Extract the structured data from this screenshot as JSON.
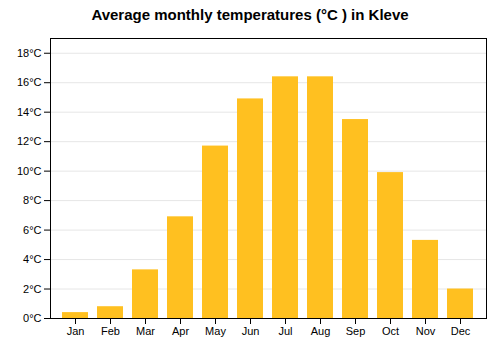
{
  "chart_data": {
    "type": "bar",
    "title": "Average monthly temperatures (°C ) in Kleve",
    "categories": [
      "Jan",
      "Feb",
      "Mar",
      "Apr",
      "May",
      "Jun",
      "Jul",
      "Aug",
      "Sep",
      "Oct",
      "Nov",
      "Dec"
    ],
    "values": [
      0.4,
      0.8,
      3.3,
      6.9,
      11.7,
      14.9,
      16.4,
      16.4,
      13.5,
      9.9,
      5.3,
      2.0
    ],
    "color": "#FFC020",
    "ylim": [
      0,
      19
    ],
    "yticks": [
      {
        "value": 0,
        "label": "0°C"
      },
      {
        "value": 2,
        "label": "2°C"
      },
      {
        "value": 4,
        "label": "4°C"
      },
      {
        "value": 6,
        "label": "6°C"
      },
      {
        "value": 8,
        "label": "8°C"
      },
      {
        "value": 10,
        "label": "10°C"
      },
      {
        "value": 12,
        "label": "12°C"
      },
      {
        "value": 14,
        "label": "14°C"
      },
      {
        "value": 16,
        "label": "16°C"
      },
      {
        "value": 18,
        "label": "18°C"
      }
    ],
    "grid": true
  }
}
